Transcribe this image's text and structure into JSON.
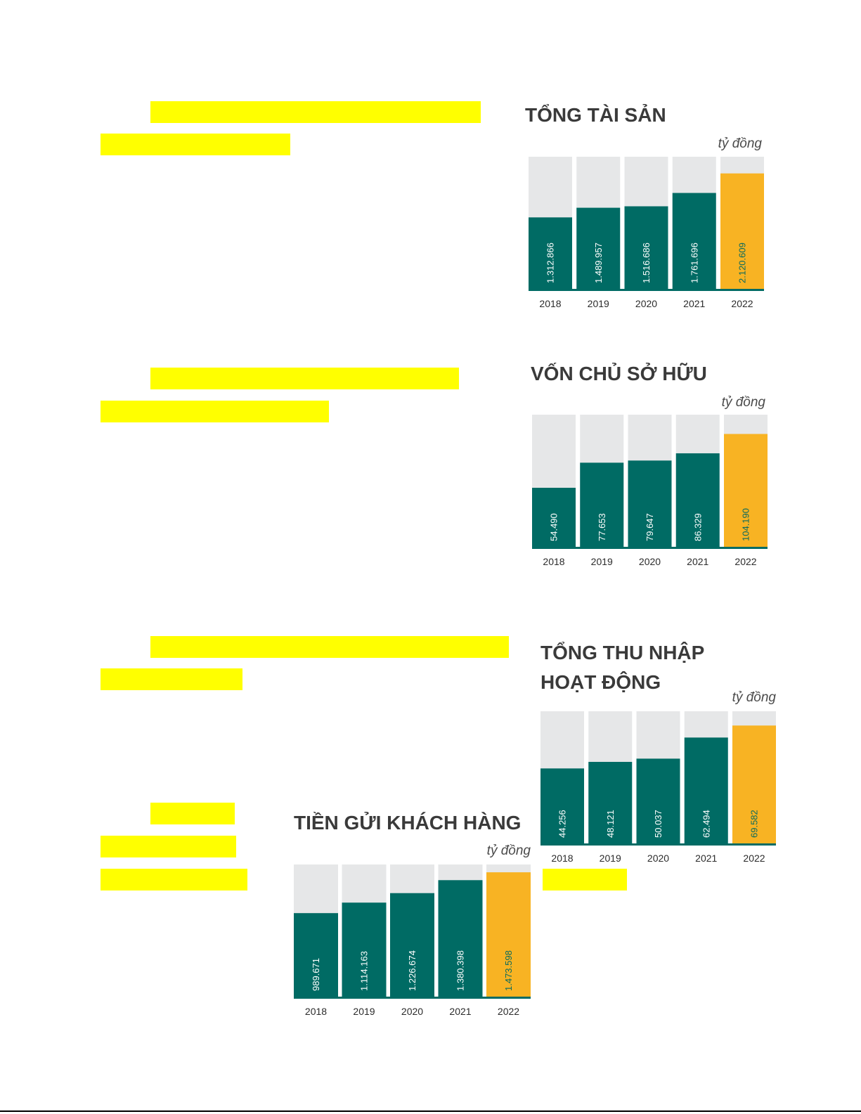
{
  "colors": {
    "highlight": "#ffff00",
    "bar_track": "#e6e7e8",
    "bar_main": "#006b64",
    "bar_latest": "#f8b323",
    "latest_label": "#0a6a5e"
  },
  "chart_data": [
    {
      "type": "bar",
      "title": [
        "TỔNG TÀI SẢN"
      ],
      "unit": "tỷ đồng",
      "categories": [
        "2018",
        "2019",
        "2020",
        "2021",
        "2022"
      ],
      "values": [
        1312866,
        1489957,
        1516686,
        1761696,
        2120609
      ],
      "value_labels": [
        "1.312.866",
        "1.489.957",
        "1.516.686",
        "1.761.696",
        "2.120.609"
      ],
      "ylim": [
        0,
        2427000
      ]
    },
    {
      "type": "bar",
      "title": [
        "VỐN CHỦ SỞ HỮU"
      ],
      "unit": "tỷ đồng",
      "categories": [
        "2018",
        "2019",
        "2020",
        "2021",
        "2022"
      ],
      "values": [
        54490,
        77653,
        79647,
        86329,
        104190
      ],
      "value_labels": [
        "54.490",
        "77.653",
        "79.647",
        "86.329",
        "104.190"
      ],
      "ylim": [
        0,
        122000
      ]
    },
    {
      "type": "bar",
      "title": [
        "TỔNG THU NHẬP",
        "HOẠT ĐỘNG"
      ],
      "unit": "tỷ đồng",
      "categories": [
        "2018",
        "2019",
        "2020",
        "2021",
        "2022"
      ],
      "values": [
        44256,
        48121,
        50037,
        62494,
        69582
      ],
      "value_labels": [
        "44.256",
        "48.121",
        "50.037",
        "62.494",
        "69.582"
      ],
      "ylim": [
        0,
        78000
      ]
    },
    {
      "type": "bar",
      "title": [
        "TIỀN GỬI KHÁCH HÀNG"
      ],
      "unit": "tỷ đồng",
      "categories": [
        "2018",
        "2019",
        "2020",
        "2021",
        "2022"
      ],
      "values": [
        989671,
        1114163,
        1226674,
        1380398,
        1473598
      ],
      "value_labels": [
        "989.671",
        "1.114.163",
        "1.226.674",
        "1.380.398",
        "1.473.598"
      ],
      "ylim": [
        0,
        1566000
      ]
    }
  ]
}
